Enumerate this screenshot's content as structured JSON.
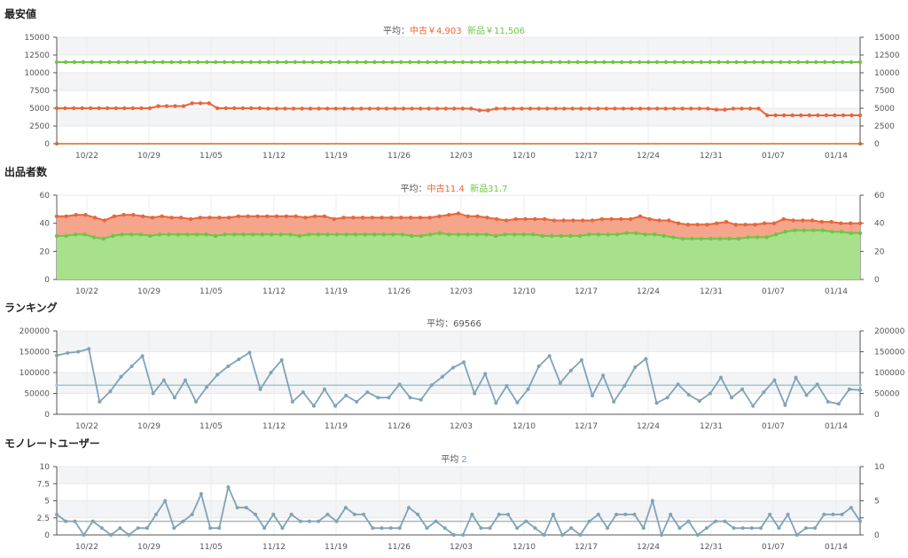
{
  "sections": [
    {
      "title": "最安値",
      "avg_label": "平均：",
      "avg_parts": [
        {
          "text": "中古￥4,903",
          "cls": "used"
        },
        {
          "text": "新品￥11,506",
          "cls": "new"
        }
      ]
    },
    {
      "title": "出品者数",
      "avg_label": "平均：",
      "avg_parts": [
        {
          "text": "中古11.4",
          "cls": "used"
        },
        {
          "text": "新品31.7",
          "cls": "new"
        }
      ]
    },
    {
      "title": "ランキング",
      "avg_label": "平均：",
      "avg_parts": [
        {
          "text": "69566",
          "cls": ""
        }
      ]
    },
    {
      "title": "モノレートユーザー",
      "avg_label": "平均 ",
      "avg_parts": [
        {
          "text": "2",
          "cls": "val"
        }
      ]
    }
  ],
  "colors": {
    "used": "#e8663a",
    "new": "#6cc644",
    "used_fill": "#f4a58c",
    "new_fill": "#a8e08c",
    "rank": "#7fa3b8",
    "avg_line": "#9cc7d6",
    "grid": "#e8e8e8",
    "axis": "#555555"
  },
  "chart_data": [
    {
      "type": "line",
      "title": "最安値",
      "x_labels": [
        "10/22",
        "10/29",
        "11/05",
        "11/12",
        "11/19",
        "11/26",
        "12/03",
        "12/10",
        "12/17",
        "12/24",
        "12/31",
        "01/07",
        "01/14"
      ],
      "ylim": [
        0,
        15000
      ],
      "yticks": [
        0,
        2500,
        5000,
        7500,
        10000,
        12500,
        15000
      ],
      "yticks_right": true,
      "grid": true,
      "series": [
        {
          "name": "新品",
          "color_key": "new",
          "values": [
            11500,
            11500,
            11500,
            11500,
            11500,
            11500,
            11500,
            11500,
            11500,
            11500,
            11500,
            11500,
            11500,
            11500,
            11500,
            11500,
            11500,
            11500,
            11500,
            11500,
            11500,
            11500,
            11500,
            11500,
            11500,
            11500,
            11500,
            11500,
            11500,
            11500,
            11500,
            11500,
            11500,
            11500,
            11500,
            11500,
            11500,
            11500,
            11500,
            11500,
            11500,
            11500,
            11500,
            11500,
            11500,
            11500,
            11500,
            11500,
            11500,
            11500,
            11500,
            11500,
            11500,
            11500,
            11500,
            11500,
            11500,
            11500,
            11500,
            11500,
            11500,
            11500,
            11500,
            11500,
            11500,
            11500,
            11500,
            11500,
            11500,
            11500,
            11500,
            11500,
            11500,
            11500,
            11500,
            11500,
            11500,
            11500,
            11500,
            11500,
            11500,
            11500,
            11500,
            11500,
            11500,
            11500,
            11500,
            11500,
            11500,
            11500,
            11500,
            11500
          ]
        },
        {
          "name": "中古",
          "color_key": "used",
          "values": [
            5000,
            5000,
            5000,
            5000,
            5000,
            5000,
            5000,
            5000,
            5000,
            5000,
            5000,
            5000,
            5300,
            5300,
            5300,
            5300,
            5700,
            5700,
            5700,
            5000,
            5000,
            5000,
            5000,
            5000,
            5000,
            4950,
            4950,
            4950,
            4950,
            4950,
            4950,
            4950,
            4950,
            4950,
            4950,
            4950,
            4950,
            4950,
            4950,
            4950,
            4950,
            4950,
            4950,
            4950,
            4950,
            4950,
            4950,
            4950,
            4950,
            4950,
            4700,
            4700,
            4950,
            4950,
            4950,
            4950,
            4950,
            4950,
            4950,
            4950,
            4950,
            4950,
            4950,
            4950,
            4950,
            4950,
            4950,
            4950,
            4950,
            4950,
            4950,
            4950,
            4950,
            4950,
            4950,
            4950,
            4950,
            4950,
            4800,
            4800,
            4950,
            4950,
            4950,
            4950,
            4000,
            4000,
            4000,
            4000,
            4000,
            4000,
            4000,
            4000,
            4000,
            4000,
            4000,
            4000
          ]
        },
        {
          "name": "",
          "color_key": "used",
          "values": [
            0,
            0
          ]
        }
      ]
    },
    {
      "type": "area",
      "title": "出品者数",
      "x_labels": [
        "10/22",
        "10/29",
        "11/05",
        "11/12",
        "11/19",
        "11/26",
        "12/03",
        "12/10",
        "12/17",
        "12/24",
        "12/31",
        "01/07",
        "01/14"
      ],
      "ylim": [
        0,
        60
      ],
      "yticks": [
        0,
        20,
        40,
        60
      ],
      "yticks_right": true,
      "grid": true,
      "series": [
        {
          "name": "中古",
          "color_key": "used",
          "stacked_total": true,
          "values": [
            45,
            45,
            46,
            46,
            44,
            42,
            45,
            46,
            46,
            45,
            44,
            45,
            44,
            44,
            43,
            44,
            44,
            44,
            44,
            45,
            45,
            45,
            45,
            45,
            45,
            45,
            44,
            45,
            45,
            43,
            44,
            44,
            44,
            44,
            44,
            44,
            44,
            44,
            44,
            44,
            45,
            46,
            47,
            45,
            45,
            44,
            43,
            42,
            43,
            43,
            43,
            43,
            42,
            42,
            42,
            42,
            42,
            43,
            43,
            43,
            43,
            45,
            43,
            42,
            42,
            40,
            39,
            39,
            39,
            40,
            41,
            39,
            39,
            39,
            40,
            40,
            43,
            42,
            42,
            42,
            41,
            41,
            40,
            40,
            40
          ]
        },
        {
          "name": "新品",
          "color_key": "new",
          "values": [
            31,
            31,
            32,
            32,
            30,
            29,
            31,
            32,
            32,
            32,
            31,
            32,
            32,
            32,
            32,
            32,
            32,
            31,
            32,
            32,
            32,
            32,
            32,
            32,
            32,
            32,
            31,
            32,
            32,
            32,
            32,
            32,
            32,
            32,
            32,
            32,
            32,
            32,
            31,
            31,
            32,
            33,
            32,
            32,
            32,
            32,
            32,
            31,
            32,
            32,
            32,
            32,
            31,
            31,
            31,
            31,
            31,
            32,
            32,
            32,
            32,
            33,
            33,
            32,
            32,
            31,
            30,
            29,
            29,
            29,
            29,
            29,
            29,
            29,
            30,
            30,
            30,
            32,
            34,
            35,
            35,
            35,
            35,
            34,
            34,
            33,
            33
          ]
        }
      ]
    },
    {
      "type": "line",
      "title": "ランキング",
      "x_labels": [
        "10/22",
        "10/29",
        "11/05",
        "11/12",
        "11/19",
        "11/26",
        "12/03",
        "12/10",
        "12/17",
        "12/24",
        "12/31",
        "01/07",
        "01/14"
      ],
      "ylim": [
        0,
        200000
      ],
      "yticks": [
        0,
        50000,
        100000,
        150000,
        200000
      ],
      "yticks_right": true,
      "grid": true,
      "average": 69566,
      "series": [
        {
          "name": "",
          "color_key": "rank",
          "values": [
            141000,
            147000,
            150000,
            157000,
            30000,
            55000,
            90000,
            115000,
            140000,
            50000,
            82000,
            40000,
            82000,
            30000,
            65000,
            95000,
            115000,
            132000,
            148000,
            60000,
            100000,
            130000,
            30000,
            53000,
            20000,
            60000,
            20000,
            45000,
            30000,
            53000,
            40000,
            40000,
            72000,
            40000,
            35000,
            70000,
            90000,
            112000,
            125000,
            50000,
            97000,
            27000,
            68000,
            28000,
            60000,
            115000,
            140000,
            75000,
            105000,
            130000,
            45000,
            93000,
            30000,
            68000,
            113000,
            133000,
            27000,
            40000,
            72000,
            47000,
            32000,
            50000,
            88000,
            40000,
            60000,
            20000,
            53000,
            82000,
            22000,
            88000,
            46000,
            72000,
            30000,
            25000,
            60000,
            58000
          ]
        }
      ]
    },
    {
      "type": "line",
      "title": "モノレートユーザー",
      "x_labels": [
        "10/22",
        "10/29",
        "11/05",
        "11/12",
        "11/19",
        "11/26",
        "12/03",
        "12/10",
        "12/17",
        "12/24",
        "12/31",
        "01/07",
        "01/14"
      ],
      "ylim": [
        0,
        10
      ],
      "yticks": [
        0,
        2.5,
        5,
        7.5,
        10
      ],
      "yticks_right": [
        0,
        5,
        10
      ],
      "grid": true,
      "average": 2,
      "series": [
        {
          "name": "",
          "color_key": "rank",
          "values": [
            3,
            2,
            2,
            0,
            2,
            1,
            0,
            1,
            0,
            1,
            1,
            3,
            5,
            1,
            2,
            3,
            6,
            1,
            1,
            7,
            4,
            4,
            3,
            1,
            3,
            1,
            3,
            2,
            2,
            2,
            3,
            2,
            4,
            3,
            3,
            1,
            1,
            1,
            1,
            4,
            3,
            1,
            2,
            1,
            0,
            0,
            3,
            1,
            1,
            3,
            3,
            1,
            2,
            1,
            0,
            3,
            0,
            1,
            0,
            2,
            3,
            1,
            3,
            3,
            3,
            1,
            5,
            0,
            3,
            1,
            2,
            0,
            1,
            2,
            2,
            1,
            1,
            1,
            1,
            3,
            1,
            3,
            0,
            1,
            1,
            3,
            3,
            3,
            4,
            2
          ]
        }
      ]
    }
  ]
}
